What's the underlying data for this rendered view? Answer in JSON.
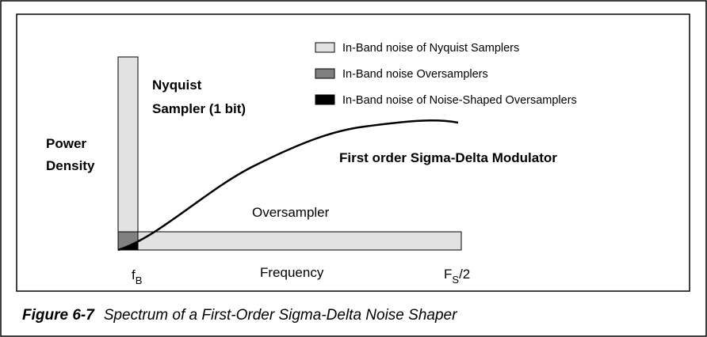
{
  "legend": [
    "In-Band noise of Nyquist Samplers",
    "In-Band noise Oversamplers",
    "In-Band noise of Noise-Shaped Oversamplers"
  ],
  "labels": {
    "nyquist": [
      "Nyquist",
      "Sampler (1 bit)"
    ],
    "power_density": [
      "Power",
      "Density"
    ],
    "modulator": "First order Sigma-Delta Modulator",
    "oversampler": "Oversampler",
    "frequency": "Frequency",
    "fb": {
      "main": "f",
      "sub": "B"
    },
    "fs2": {
      "main": "F",
      "sub": "S",
      "suffix": "/2"
    }
  },
  "caption": {
    "number": "Figure 6-7",
    "text": "Spectrum of a First-Order Sigma-Delta Noise Shaper"
  }
}
